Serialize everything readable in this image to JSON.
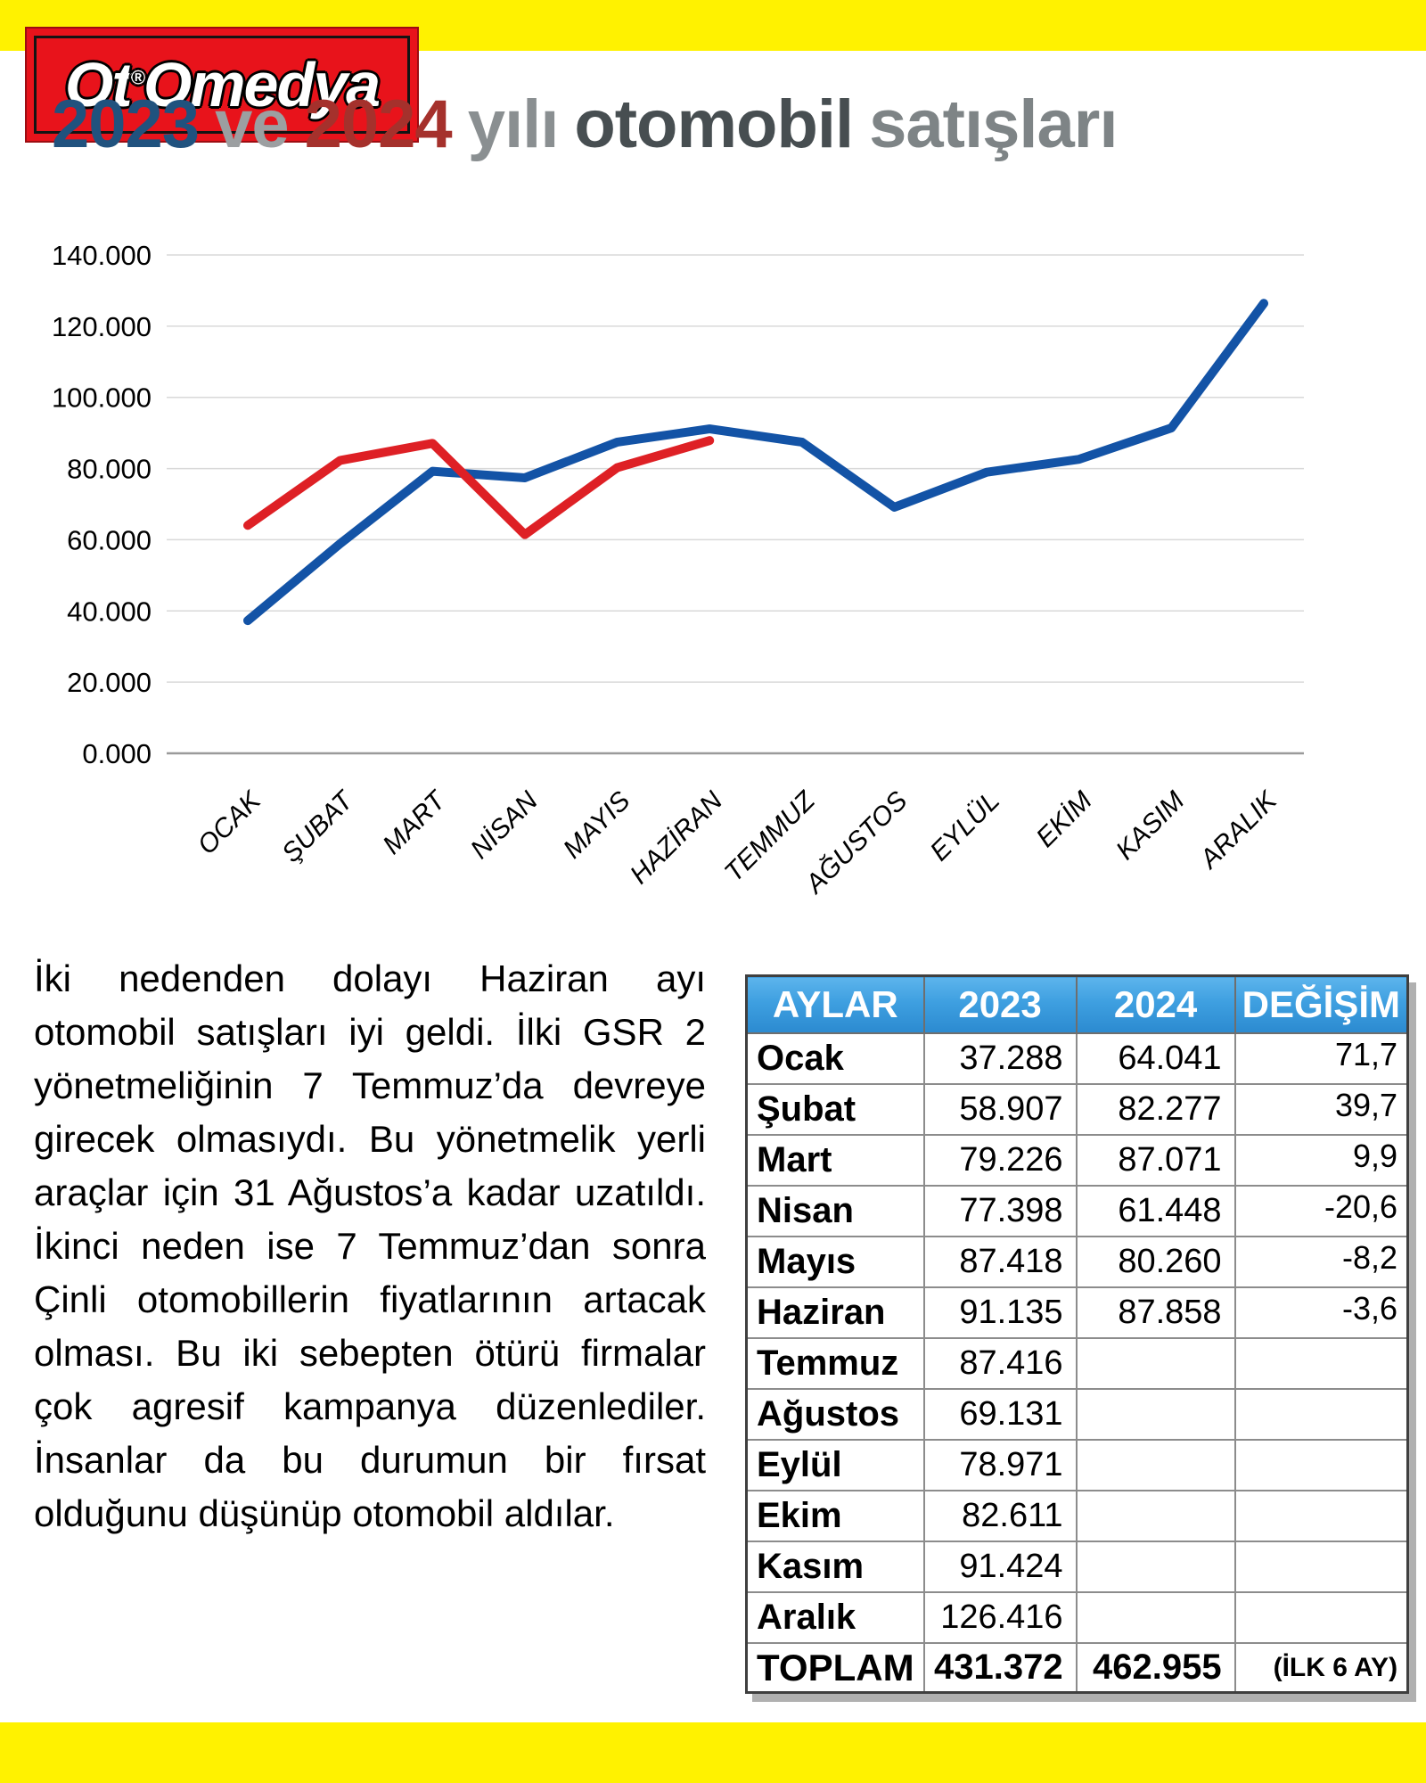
{
  "page": {
    "background": "#FFFFFF",
    "stripe_color": "#FFF200"
  },
  "logo": {
    "text_pre": "Ot",
    "reg_mark": "®",
    "text_post": "Omedya",
    "bg_color": "#E8131B"
  },
  "title": {
    "segments": [
      {
        "text": "2023",
        "color": "#20527E"
      },
      {
        "text": "ve",
        "color": "#9C9FA1"
      },
      {
        "text": "2024",
        "color": "#A5312C"
      },
      {
        "text": "yılı",
        "color": "#8A8F91"
      },
      {
        "text": "otomobil",
        "color": "#474E51"
      },
      {
        "text": "satışları",
        "color": "#7E8486"
      }
    ]
  },
  "chart_data": {
    "type": "line",
    "title": "2023 ve 2024 yılı otomobil satışları",
    "categories": [
      "OCAK",
      "ŞUBAT",
      "MART",
      "NİSAN",
      "MAYIS",
      "HAZİRAN",
      "TEMMUZ",
      "AĞUSTOS",
      "EYLÜL",
      "EKİM",
      "KASIM",
      "ARALIK"
    ],
    "series": [
      {
        "name": "2023",
        "color": "#1353A6",
        "values": [
          37288,
          58907,
          79226,
          77398,
          87418,
          91135,
          87416,
          69131,
          78971,
          82611,
          91424,
          126416
        ]
      },
      {
        "name": "2024",
        "color": "#DE2025",
        "values": [
          64041,
          82277,
          87071,
          61448,
          80260,
          87858
        ]
      }
    ],
    "ylim": [
      0,
      140000
    ],
    "ytick_labels": [
      "140.000",
      "120.000",
      "100.000",
      "80.000",
      "60.000",
      "40.000",
      "20.000",
      "0.000"
    ],
    "grid": true,
    "legend": "none",
    "gridline_color": "#D9D9D9",
    "axis_color": "#9A9A9A"
  },
  "article": {
    "text": "İki nedenden dolayı Haziran ayı otomobil satışları iyi geldi. İlki GSR 2 yönetmeliğinin 7 Temmuz’da devreye girecek olmasıydı. Bu yönetmelik yerli araçlar için 31 Ağustos’a kadar uzatıldı. İkinci neden ise 7 Temmuz’dan sonra Çinli otomobillerin fiyatlarının artacak olması. Bu iki sebepten ötürü firmalar çok agresif kampanya düzenlediler. İnsanlar da bu durumun bir fırsat olduğunu düşünüp otomobil aldılar."
  },
  "table": {
    "headers": [
      "AYLAR",
      "2023",
      "2024",
      "DEĞİŞİM"
    ],
    "header_bg_top": "#5CB4EC",
    "header_bg_bottom": "#2B8AD0",
    "rows": [
      {
        "month": "Ocak",
        "y2023": "37.288",
        "y2024": "64.041",
        "change": "71,7"
      },
      {
        "month": "Şubat",
        "y2023": "58.907",
        "y2024": "82.277",
        "change": "39,7"
      },
      {
        "month": "Mart",
        "y2023": "79.226",
        "y2024": "87.071",
        "change": "9,9"
      },
      {
        "month": "Nisan",
        "y2023": "77.398",
        "y2024": "61.448",
        "change": "-20,6"
      },
      {
        "month": "Mayıs",
        "y2023": "87.418",
        "y2024": "80.260",
        "change": "-8,2"
      },
      {
        "month": "Haziran",
        "y2023": "91.135",
        "y2024": "87.858",
        "change": "-3,6"
      },
      {
        "month": "Temmuz",
        "y2023": "87.416",
        "y2024": "",
        "change": ""
      },
      {
        "month": "Ağustos",
        "y2023": "69.131",
        "y2024": "",
        "change": ""
      },
      {
        "month": "Eylül",
        "y2023": "78.971",
        "y2024": "",
        "change": ""
      },
      {
        "month": "Ekim",
        "y2023": "82.611",
        "y2024": "",
        "change": ""
      },
      {
        "month": "Kasım",
        "y2023": "91.424",
        "y2024": "",
        "change": ""
      },
      {
        "month": "Aralık",
        "y2023": "126.416",
        "y2024": "",
        "change": ""
      }
    ],
    "total": {
      "label": "TOPLAM",
      "y2023": "431.372",
      "y2024": "462.955",
      "note": "(İLK 6 AY)"
    }
  }
}
